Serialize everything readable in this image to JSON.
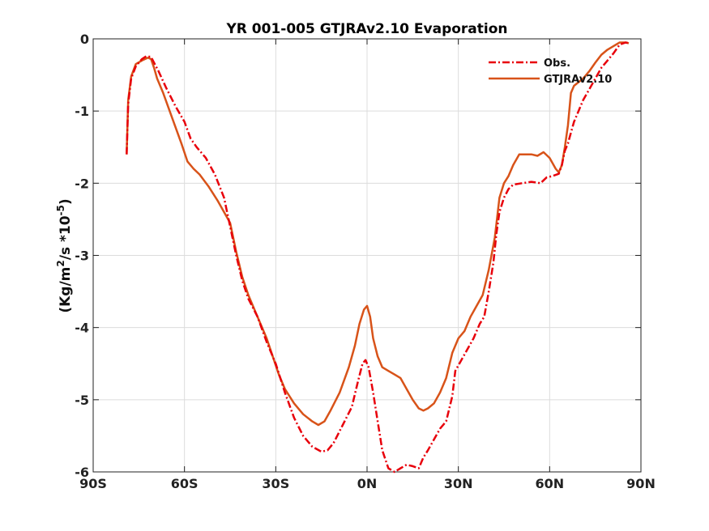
{
  "chart_data": {
    "type": "line",
    "title": "YR 001-005 GTJRAv2.10 Evaporation",
    "xlabel": "",
    "ylabel_parts": {
      "pre": "(Kg/m",
      "sup1": "2",
      "mid": "/s *10",
      "sup2": "-5",
      "post": ")"
    },
    "xlim": [
      -90,
      90
    ],
    "ylim": [
      -6,
      0
    ],
    "grid": true,
    "legend_position": "top-right",
    "x_ticks": [
      {
        "value": -90,
        "label": "90S"
      },
      {
        "value": -60,
        "label": "60S"
      },
      {
        "value": -30,
        "label": "30S"
      },
      {
        "value": 0,
        "label": "0N"
      },
      {
        "value": 30,
        "label": "30N"
      },
      {
        "value": 60,
        "label": "60N"
      },
      {
        "value": 90,
        "label": "90N"
      }
    ],
    "y_ticks": [
      {
        "value": 0,
        "label": "0"
      },
      {
        "value": -1,
        "label": "-1"
      },
      {
        "value": -2,
        "label": "-2"
      },
      {
        "value": -3,
        "label": "-3"
      },
      {
        "value": -4,
        "label": "-4"
      },
      {
        "value": -5,
        "label": "-5"
      },
      {
        "value": -6,
        "label": "-6"
      }
    ],
    "series": [
      {
        "name": "Obs.",
        "color": "#e8000b",
        "style": "dashdot",
        "points": [
          [
            -79,
            -1.6
          ],
          [
            -78.5,
            -0.9
          ],
          [
            -77.5,
            -0.55
          ],
          [
            -76,
            -0.38
          ],
          [
            -74,
            -0.28
          ],
          [
            -72.5,
            -0.24
          ],
          [
            -71,
            -0.25
          ],
          [
            -70,
            -0.33
          ],
          [
            -68.5,
            -0.45
          ],
          [
            -66,
            -0.68
          ],
          [
            -63,
            -0.93
          ],
          [
            -60,
            -1.15
          ],
          [
            -58,
            -1.38
          ],
          [
            -56,
            -1.5
          ],
          [
            -53,
            -1.65
          ],
          [
            -50,
            -1.88
          ],
          [
            -47,
            -2.2
          ],
          [
            -45,
            -2.6
          ],
          [
            -43,
            -3.0
          ],
          [
            -41,
            -3.35
          ],
          [
            -39,
            -3.6
          ],
          [
            -36,
            -3.85
          ],
          [
            -33,
            -4.2
          ],
          [
            -30,
            -4.5
          ],
          [
            -27,
            -4.9
          ],
          [
            -24,
            -5.25
          ],
          [
            -21,
            -5.5
          ],
          [
            -18,
            -5.65
          ],
          [
            -15,
            -5.72
          ],
          [
            -13,
            -5.7
          ],
          [
            -11,
            -5.6
          ],
          [
            -8,
            -5.35
          ],
          [
            -5,
            -5.1
          ],
          [
            -3,
            -4.75
          ],
          [
            -1.5,
            -4.5
          ],
          [
            -0.5,
            -4.45
          ],
          [
            0.5,
            -4.55
          ],
          [
            2,
            -4.9
          ],
          [
            3.5,
            -5.3
          ],
          [
            5,
            -5.7
          ],
          [
            7,
            -5.95
          ],
          [
            9,
            -6.0
          ],
          [
            11,
            -5.95
          ],
          [
            13,
            -5.9
          ],
          [
            15,
            -5.92
          ],
          [
            17,
            -5.95
          ],
          [
            18.5,
            -5.8
          ],
          [
            20,
            -5.7
          ],
          [
            22,
            -5.55
          ],
          [
            24,
            -5.4
          ],
          [
            26,
            -5.3
          ],
          [
            28,
            -4.95
          ],
          [
            29,
            -4.6
          ],
          [
            31,
            -4.45
          ],
          [
            33,
            -4.3
          ],
          [
            35,
            -4.15
          ],
          [
            37,
            -3.95
          ],
          [
            38.5,
            -3.85
          ],
          [
            40,
            -3.5
          ],
          [
            41.5,
            -3.1
          ],
          [
            42.5,
            -2.7
          ],
          [
            43.5,
            -2.4
          ],
          [
            45,
            -2.2
          ],
          [
            46.5,
            -2.08
          ],
          [
            48,
            -2.02
          ],
          [
            51,
            -2.0
          ],
          [
            54,
            -1.98
          ],
          [
            57,
            -2.0
          ],
          [
            59,
            -1.92
          ],
          [
            61,
            -1.9
          ],
          [
            63,
            -1.87
          ],
          [
            64,
            -1.75
          ],
          [
            65,
            -1.55
          ],
          [
            66,
            -1.45
          ],
          [
            67,
            -1.3
          ],
          [
            68,
            -1.15
          ],
          [
            69.5,
            -1.0
          ],
          [
            71,
            -0.85
          ],
          [
            73,
            -0.7
          ],
          [
            75,
            -0.55
          ],
          [
            77,
            -0.4
          ],
          [
            79,
            -0.3
          ],
          [
            81,
            -0.2
          ],
          [
            83,
            -0.08
          ],
          [
            85,
            -0.05
          ],
          [
            86,
            -0.06
          ]
        ]
      },
      {
        "name": "GTJRAv2.10",
        "color": "#d85319",
        "style": "solid",
        "points": [
          [
            -79,
            -1.6
          ],
          [
            -78.5,
            -0.85
          ],
          [
            -77.5,
            -0.52
          ],
          [
            -76,
            -0.35
          ],
          [
            -74,
            -0.3
          ],
          [
            -72,
            -0.26
          ],
          [
            -71,
            -0.28
          ],
          [
            -70,
            -0.4
          ],
          [
            -69,
            -0.55
          ],
          [
            -67,
            -0.75
          ],
          [
            -64,
            -1.1
          ],
          [
            -61,
            -1.45
          ],
          [
            -59,
            -1.7
          ],
          [
            -57,
            -1.8
          ],
          [
            -55,
            -1.88
          ],
          [
            -52,
            -2.05
          ],
          [
            -49,
            -2.25
          ],
          [
            -47,
            -2.4
          ],
          [
            -45,
            -2.55
          ],
          [
            -43,
            -2.95
          ],
          [
            -41,
            -3.3
          ],
          [
            -39,
            -3.55
          ],
          [
            -37,
            -3.75
          ],
          [
            -35,
            -3.95
          ],
          [
            -33,
            -4.15
          ],
          [
            -31,
            -4.4
          ],
          [
            -29,
            -4.65
          ],
          [
            -27,
            -4.85
          ],
          [
            -24,
            -5.05
          ],
          [
            -21,
            -5.2
          ],
          [
            -18,
            -5.3
          ],
          [
            -16,
            -5.35
          ],
          [
            -14,
            -5.3
          ],
          [
            -12,
            -5.15
          ],
          [
            -9,
            -4.9
          ],
          [
            -6,
            -4.55
          ],
          [
            -4,
            -4.25
          ],
          [
            -2.5,
            -3.95
          ],
          [
            -1,
            -3.75
          ],
          [
            0,
            -3.7
          ],
          [
            1,
            -3.85
          ],
          [
            2,
            -4.15
          ],
          [
            3.5,
            -4.4
          ],
          [
            5,
            -4.55
          ],
          [
            7,
            -4.6
          ],
          [
            9,
            -4.65
          ],
          [
            11,
            -4.7
          ],
          [
            13,
            -4.85
          ],
          [
            15,
            -5.0
          ],
          [
            17,
            -5.12
          ],
          [
            18.5,
            -5.15
          ],
          [
            20,
            -5.12
          ],
          [
            22,
            -5.05
          ],
          [
            24,
            -4.9
          ],
          [
            26,
            -4.7
          ],
          [
            28,
            -4.35
          ],
          [
            30,
            -4.15
          ],
          [
            32,
            -4.05
          ],
          [
            34,
            -3.85
          ],
          [
            36,
            -3.7
          ],
          [
            38,
            -3.55
          ],
          [
            40,
            -3.2
          ],
          [
            42,
            -2.75
          ],
          [
            43.5,
            -2.2
          ],
          [
            45,
            -2.0
          ],
          [
            46.5,
            -1.9
          ],
          [
            48,
            -1.75
          ],
          [
            50,
            -1.6
          ],
          [
            52,
            -1.6
          ],
          [
            54,
            -1.6
          ],
          [
            56,
            -1.62
          ],
          [
            58,
            -1.57
          ],
          [
            60,
            -1.65
          ],
          [
            62,
            -1.8
          ],
          [
            63,
            -1.85
          ],
          [
            64,
            -1.75
          ],
          [
            65,
            -1.5
          ],
          [
            66,
            -1.2
          ],
          [
            67,
            -0.75
          ],
          [
            68,
            -0.65
          ],
          [
            69.5,
            -0.6
          ],
          [
            71,
            -0.55
          ],
          [
            73,
            -0.45
          ],
          [
            75,
            -0.33
          ],
          [
            77,
            -0.22
          ],
          [
            79,
            -0.15
          ],
          [
            81,
            -0.1
          ],
          [
            83,
            -0.05
          ],
          [
            85,
            -0.05
          ],
          [
            86,
            -0.06
          ]
        ]
      }
    ]
  }
}
